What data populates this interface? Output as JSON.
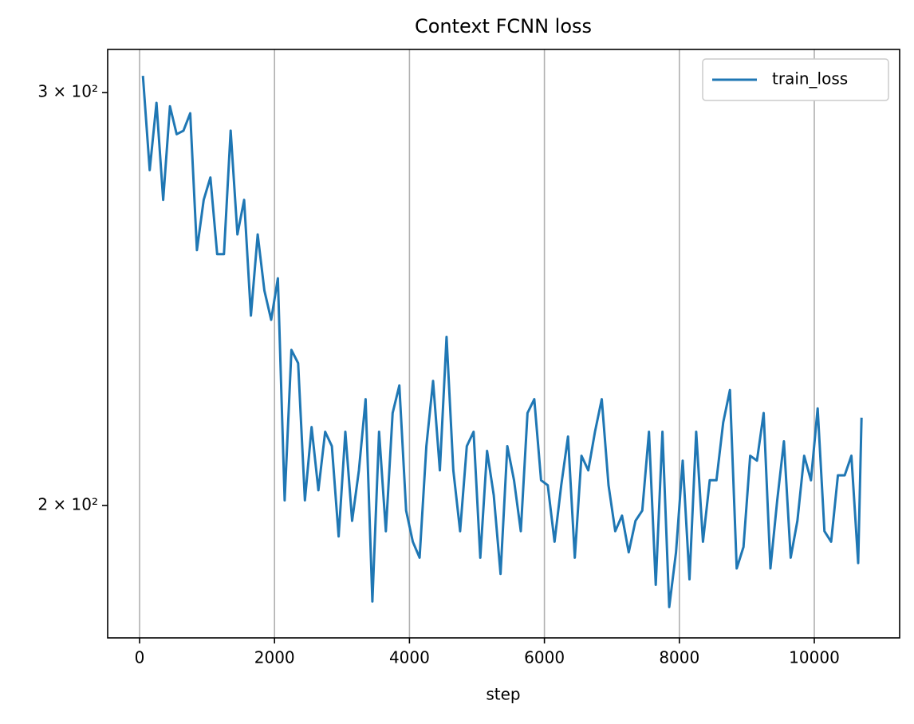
{
  "chart_data": {
    "type": "line",
    "title": "Context FCNN loss",
    "x_label": "step",
    "x": [
      50,
      150,
      250,
      350,
      450,
      550,
      650,
      750,
      850,
      950,
      1050,
      1150,
      1250,
      1350,
      1450,
      1550,
      1650,
      1750,
      1850,
      1950,
      2050,
      2150,
      2250,
      2350,
      2450,
      2550,
      2650,
      2750,
      2850,
      2950,
      3050,
      3150,
      3250,
      3350,
      3450,
      3550,
      3650,
      3750,
      3850,
      3950,
      4050,
      4150,
      4250,
      4350,
      4450,
      4550,
      4650,
      4750,
      4850,
      4950,
      5050,
      5150,
      5250,
      5350,
      5450,
      5550,
      5650,
      5750,
      5850,
      5950,
      6050,
      6150,
      6250,
      6350,
      6450,
      6550,
      6650,
      6750,
      6850,
      6950,
      7050,
      7150,
      7250,
      7350,
      7450,
      7550,
      7650,
      7750,
      7850,
      7950,
      8050,
      8150,
      8250,
      8350,
      8450,
      8550,
      8650,
      8750,
      8850,
      8950,
      9050,
      9150,
      9250,
      9350,
      9450,
      9550,
      9650,
      9750,
      9850,
      9950,
      10050,
      10150,
      10250,
      10350,
      10450,
      10550,
      10650,
      10700
    ],
    "series": [
      {
        "name": "train_loss",
        "color": "#1f77b4",
        "values": [
          305,
          278,
          297,
          270,
          296,
          288,
          289,
          294,
          257,
          270,
          276,
          256,
          256,
          289,
          261,
          270,
          241,
          261,
          247,
          240,
          250,
          201,
          233,
          230,
          201,
          216,
          203,
          215,
          212,
          194,
          215,
          197,
          207,
          222,
          182,
          215,
          195,
          219,
          225,
          199,
          193,
          190,
          212,
          226,
          207,
          236,
          207,
          195,
          212,
          215,
          190,
          211,
          202,
          187,
          212,
          205,
          195,
          219,
          222,
          205,
          204,
          193,
          204,
          214,
          190,
          210,
          207,
          215,
          222,
          204,
          195,
          198,
          191,
          197,
          199,
          215,
          185,
          215,
          181,
          191,
          209,
          186,
          215,
          193,
          205,
          205,
          217,
          224,
          188,
          192,
          210,
          209,
          219,
          188,
          201,
          213,
          190,
          197,
          210,
          205,
          220,
          195,
          193,
          206,
          206,
          210,
          189,
          218
        ]
      }
    ],
    "xlim": [
      -473,
      11265
    ],
    "xticks": [
      0,
      2000,
      4000,
      6000,
      8000,
      10000
    ],
    "ylim": [
      175.6,
      313
    ],
    "yscale": "log",
    "yticks": [
      {
        "value": 200,
        "label": "2 × 10²"
      },
      {
        "value": 300,
        "label": "3 × 10²"
      }
    ],
    "grid": "x",
    "legend": "upper right"
  }
}
